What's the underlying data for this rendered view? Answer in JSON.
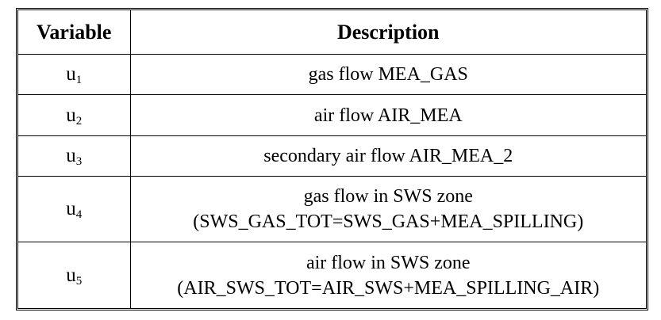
{
  "table": {
    "headers": {
      "variable": "Variable",
      "description": "Description"
    },
    "rows": [
      {
        "var_base": "u",
        "var_sub": "1",
        "desc_line1": "gas flow MEA_GAS",
        "desc_line2": ""
      },
      {
        "var_base": "u",
        "var_sub": "2",
        "desc_line1": "air flow AIR_MEA",
        "desc_line2": ""
      },
      {
        "var_base": "u",
        "var_sub": "3",
        "desc_line1": "secondary air flow AIR_MEA_2",
        "desc_line2": ""
      },
      {
        "var_base": "u",
        "var_sub": "4",
        "desc_line1": "gas flow in SWS zone",
        "desc_line2": "(SWS_GAS_TOT=SWS_GAS+MEA_SPILLING)"
      },
      {
        "var_base": "u",
        "var_sub": "5",
        "desc_line1": "air flow in SWS zone",
        "desc_line2": "(AIR_SWS_TOT=AIR_SWS+MEA_SPILLING_AIR)"
      }
    ]
  }
}
